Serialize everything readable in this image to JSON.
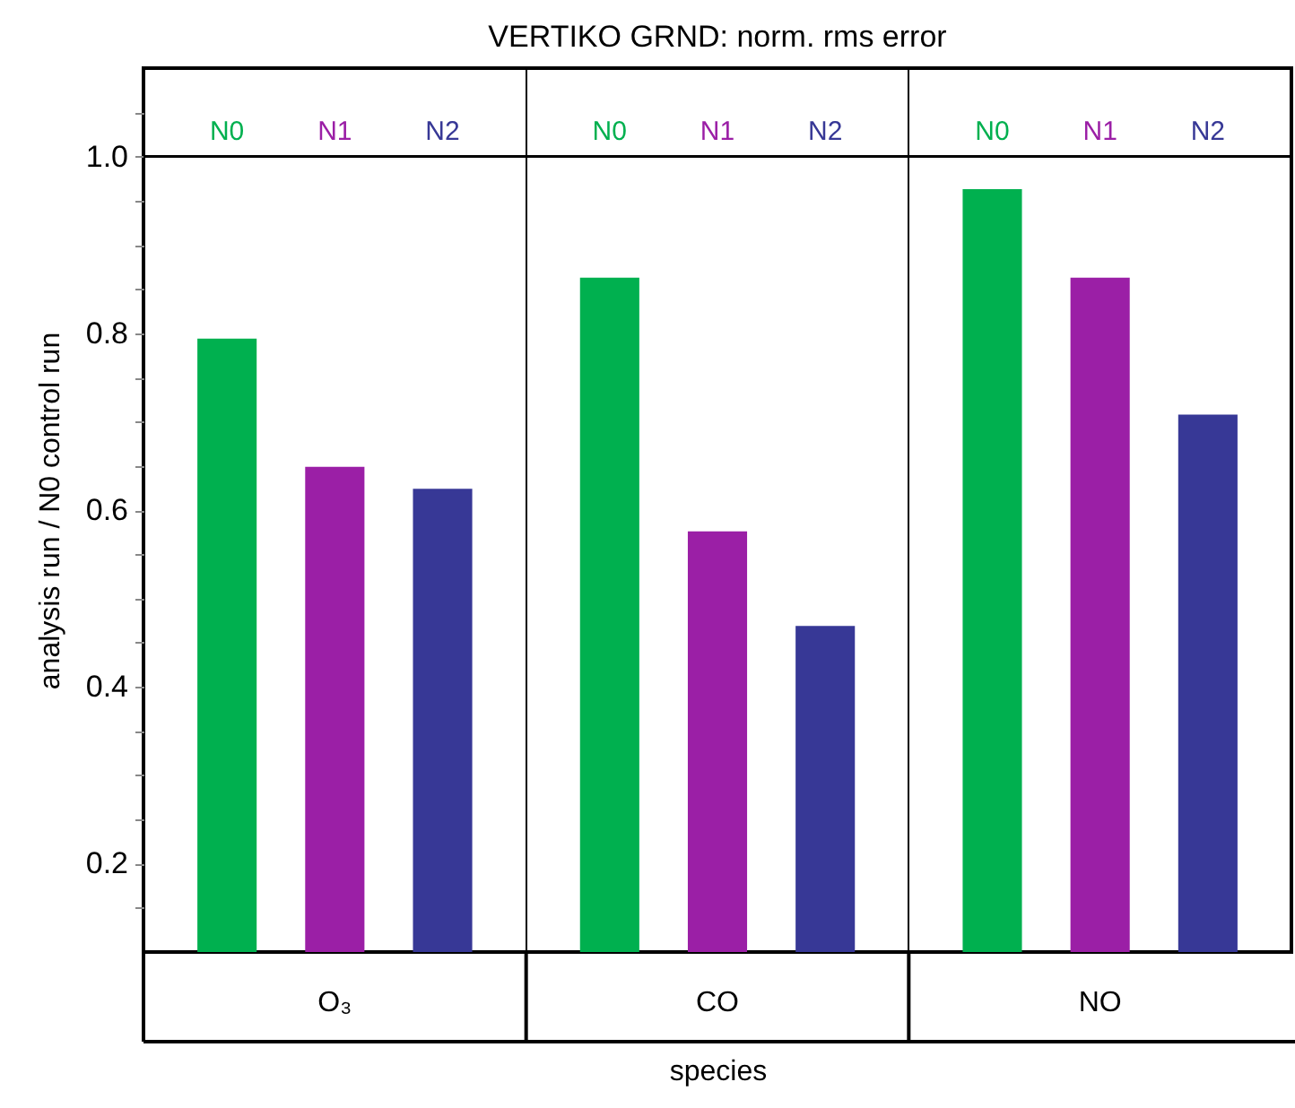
{
  "chart_data": {
    "type": "bar",
    "title": "VERTIKO GRND: norm. rms error",
    "xlabel": "species",
    "ylabel": "analysis run / N0 control run",
    "categories": [
      "O₃",
      "CO",
      "NO"
    ],
    "series": [
      {
        "name": "N0",
        "color": "#00b04f",
        "values": [
          0.794,
          0.863,
          0.963
        ]
      },
      {
        "name": "N1",
        "color": "#9b1fa6",
        "values": [
          0.649,
          0.576,
          0.863
        ]
      },
      {
        "name": "N2",
        "color": "#373896",
        "values": [
          0.624,
          0.469,
          0.708
        ]
      }
    ],
    "ylim": [
      0.1,
      1.1
    ],
    "yticks": [
      {
        "value": 0.15,
        "label": null
      },
      0.2,
      {
        "value": 0.25,
        "label": null
      },
      {
        "value": 0.3,
        "label": null
      },
      {
        "value": 0.35,
        "label": null
      },
      0.4,
      {
        "value": 0.45,
        "label": null
      },
      {
        "value": 0.5,
        "label": null
      },
      {
        "value": 0.55,
        "label": null
      },
      0.6,
      {
        "value": 0.65,
        "label": null
      },
      {
        "value": 0.7,
        "label": null
      },
      {
        "value": 0.75,
        "label": null
      },
      0.8,
      {
        "value": 0.85,
        "label": null
      },
      {
        "value": 0.9,
        "label": null
      },
      {
        "value": 0.95,
        "label": null
      },
      "1.0",
      {
        "value": 1.05,
        "label": null
      }
    ],
    "ref_lines": [
      {
        "axis": "y",
        "value": 1.0,
        "color": "#000000"
      }
    ],
    "grid": "x"
  }
}
